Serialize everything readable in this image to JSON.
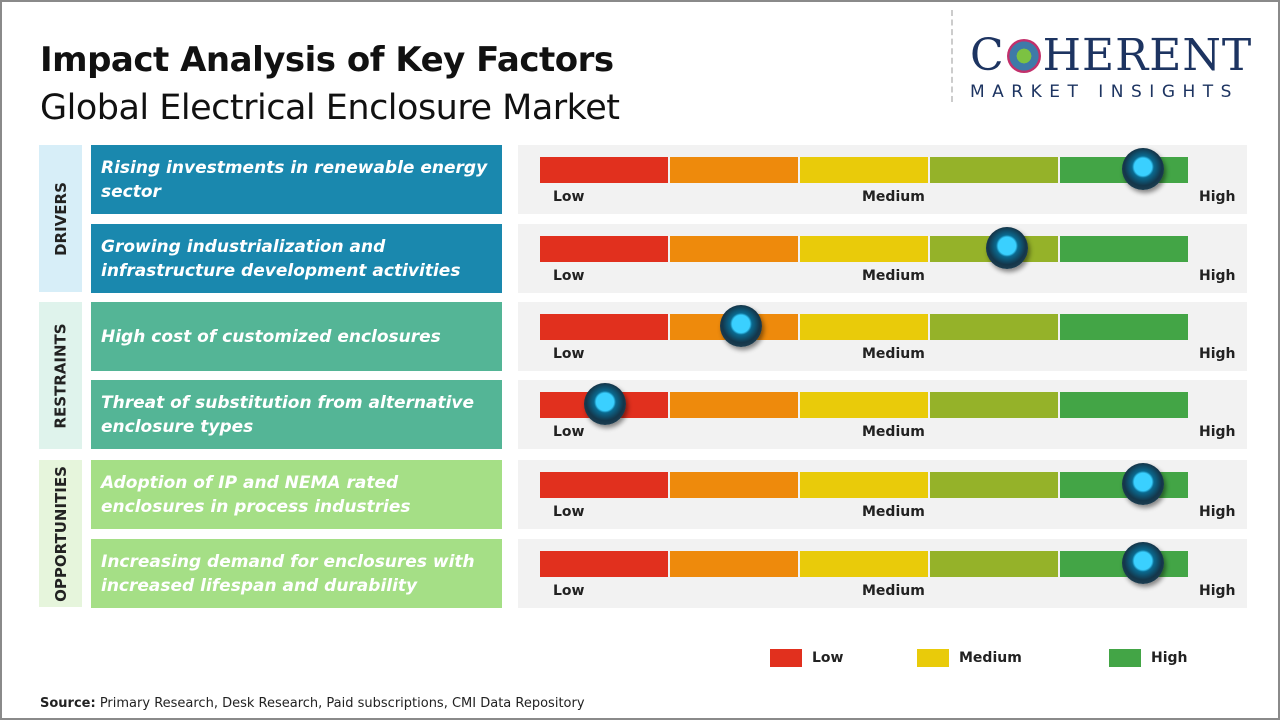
{
  "header": {
    "title": "Impact Analysis of Key Factors",
    "subtitle": "Global Electrical Enclosure Market"
  },
  "logo": {
    "main_left": "C",
    "main_right": "HERENT",
    "sub": "MARKET INSIGHTS"
  },
  "scale": {
    "low": "Low",
    "medium": "Medium",
    "high": "High",
    "segment_colors": [
      "#e1301e",
      "#ee8a0c",
      "#e9cb0a",
      "#95b229",
      "#43a546"
    ]
  },
  "categories": [
    {
      "name": "DRIVERS",
      "tab_color": "#d7eef8",
      "box_color": "#1a88ae"
    },
    {
      "name": "RESTRAINTS",
      "tab_color": "#dff3ec",
      "box_color": "#54b596"
    },
    {
      "name": "OPPORTUNITIES",
      "tab_color": "#e6f5dc",
      "box_color": "#a5df86"
    }
  ],
  "factors": [
    {
      "text": "Rising investments in renewable energy sector",
      "category": 0,
      "impact_level": 0.93
    },
    {
      "text": "Growing industrialization and infrastructure development activities",
      "category": 0,
      "impact_level": 0.72
    },
    {
      "text": "High cost of customized enclosures",
      "category": 1,
      "impact_level": 0.31
    },
    {
      "text": "Threat of substitution from alternative enclosure types",
      "category": 1,
      "impact_level": 0.1
    },
    {
      "text": "Adoption of IP and NEMA rated enclosures in process industries",
      "category": 2,
      "impact_level": 0.93
    },
    {
      "text": "Increasing demand for enclosures with increased lifespan and durability",
      "category": 2,
      "impact_level": 0.93
    }
  ],
  "legend": [
    {
      "label": "Low",
      "color": "#e1301e"
    },
    {
      "label": "Medium",
      "color": "#e9cb0a"
    },
    {
      "label": "High",
      "color": "#43a546"
    }
  ],
  "source": {
    "label": "Source:",
    "text": " Primary Research, Desk Research, Paid subscriptions, CMI Data Repository"
  }
}
